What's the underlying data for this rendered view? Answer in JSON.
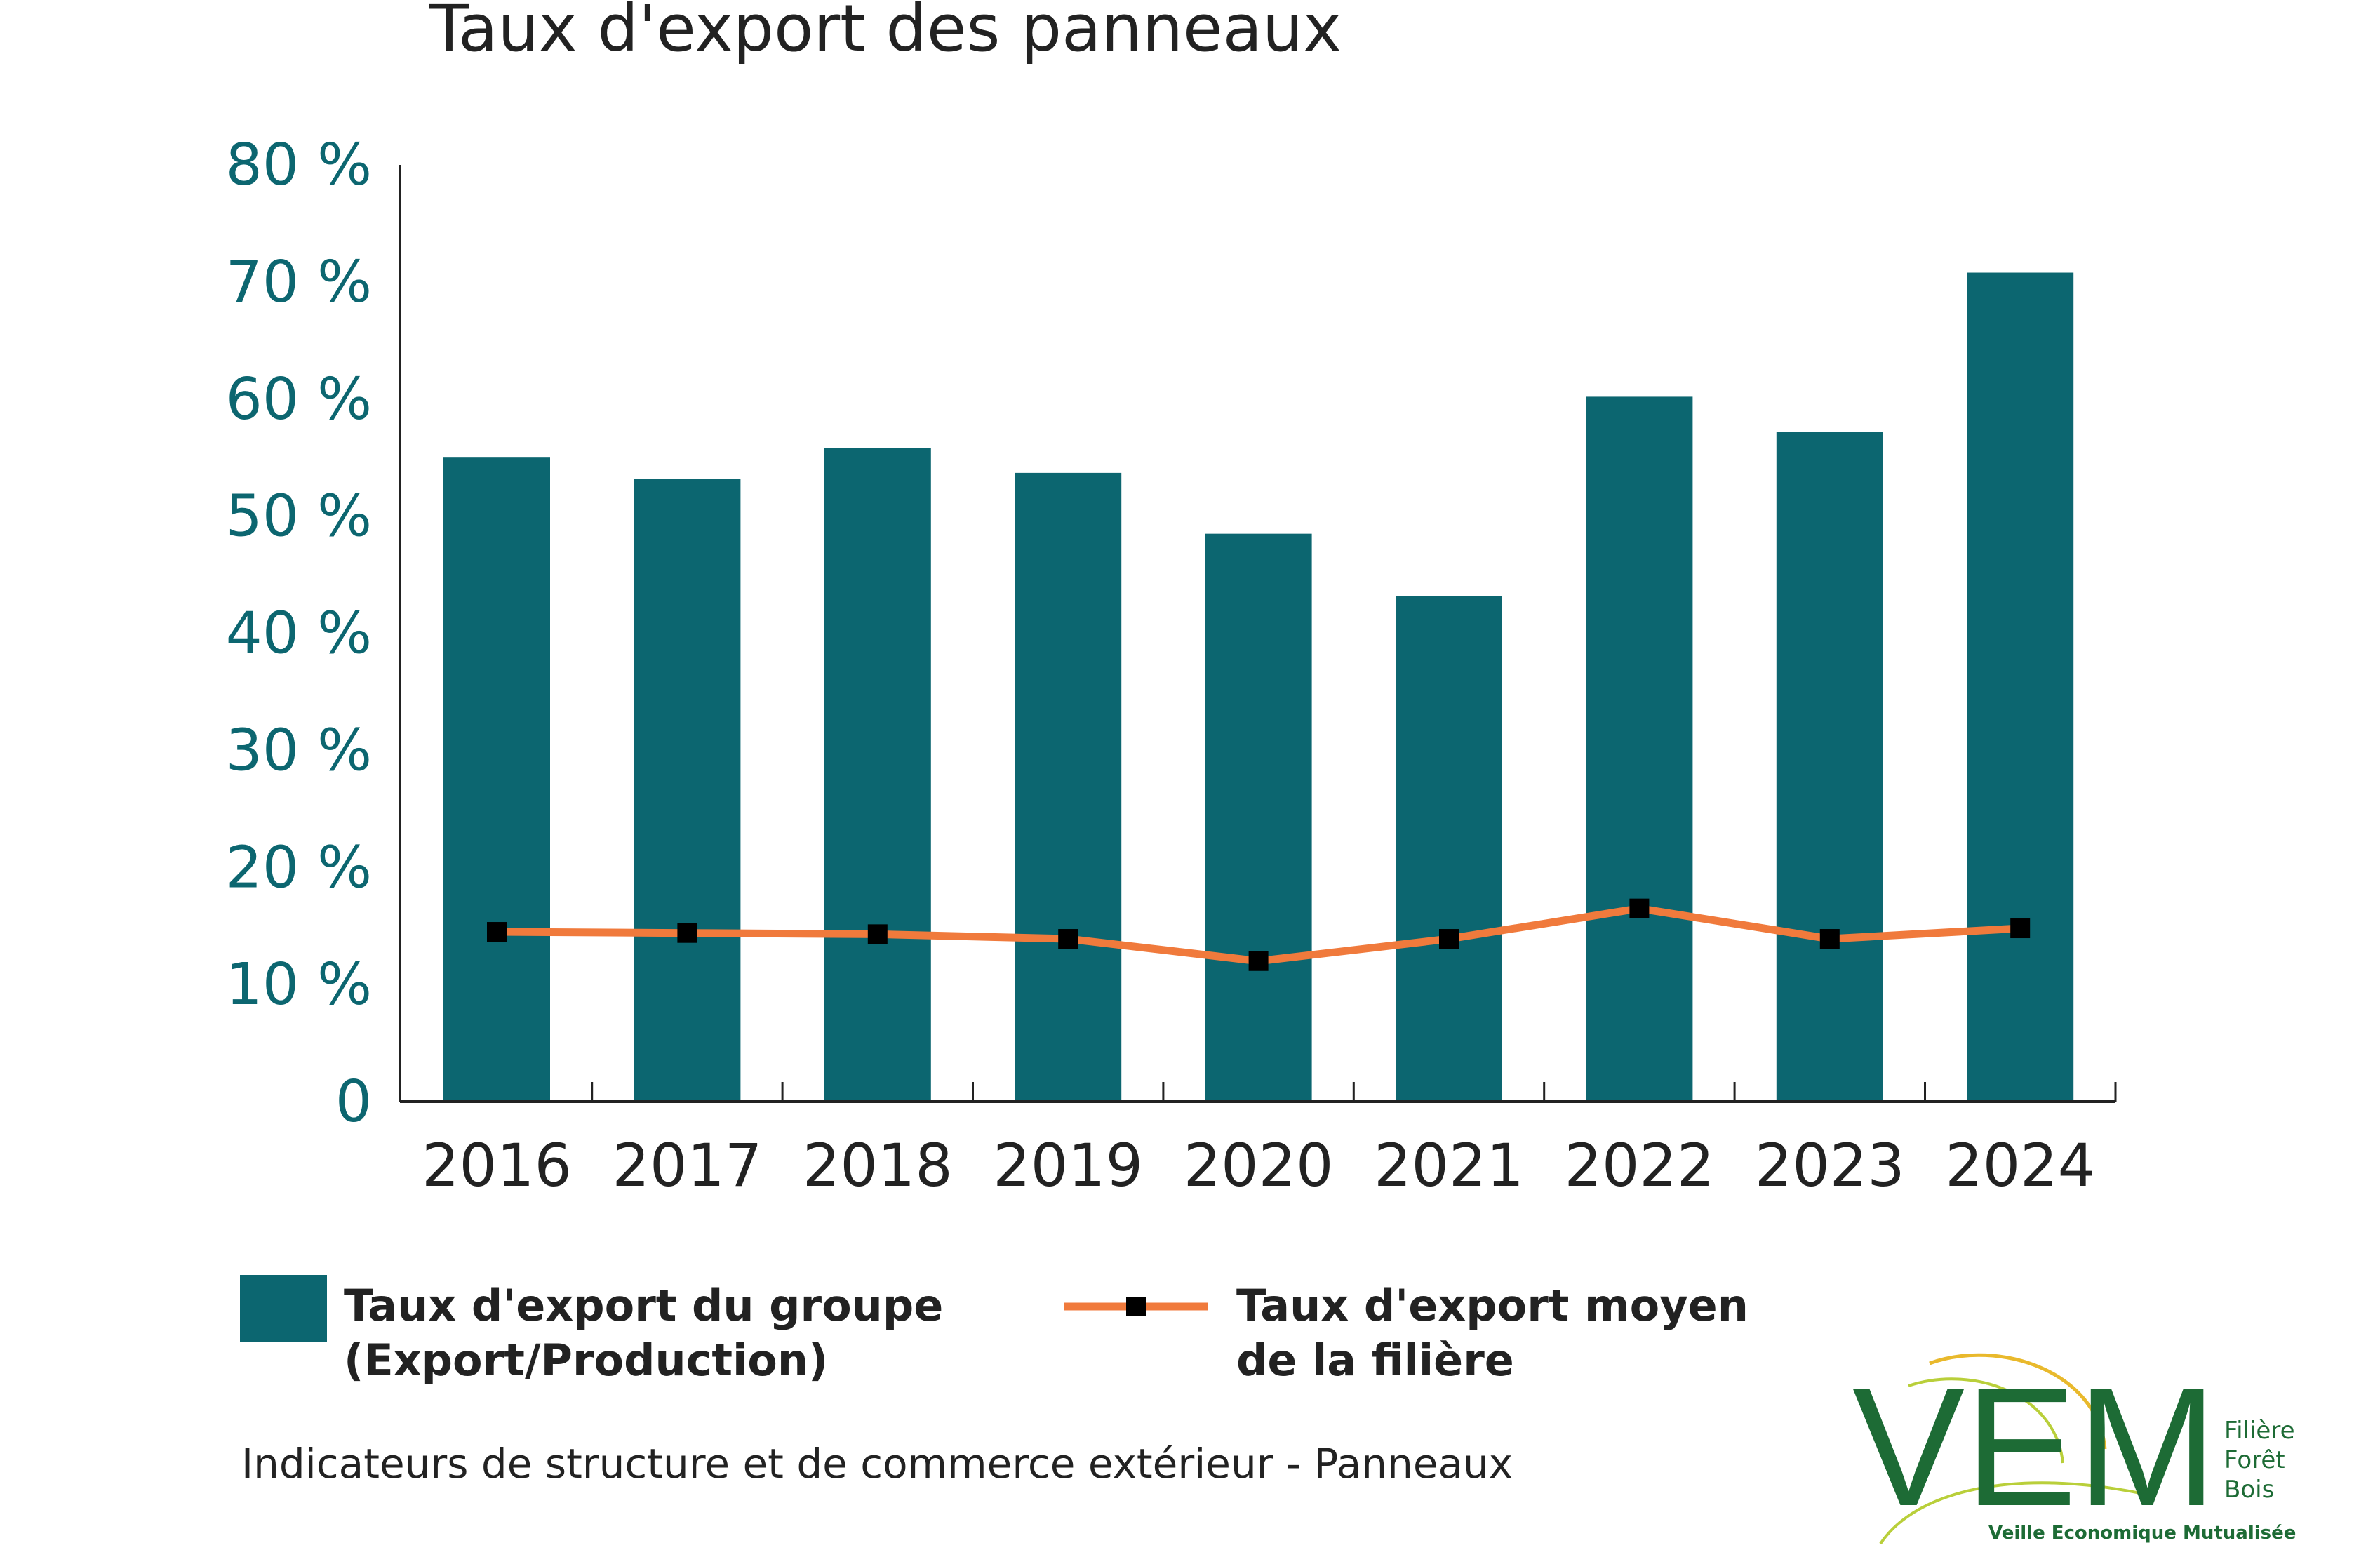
{
  "chart_data": {
    "type": "bar",
    "title": "Taux d'export des panneaux",
    "categories": [
      "2016",
      "2017",
      "2018",
      "2019",
      "2020",
      "2021",
      "2022",
      "2023",
      "2024"
    ],
    "series": [
      {
        "name": "Taux d'export du groupe\n(Export/Production)",
        "type": "bar",
        "color": "#0c6670",
        "values": [
          55,
          53.2,
          55.8,
          53.7,
          48.5,
          43.2,
          60.2,
          57.2,
          70.8
        ]
      },
      {
        "name": "Taux d'export moyen\nde la filière",
        "type": "line",
        "color": "#f07a3c",
        "marker_color": "#000000",
        "values": [
          14.5,
          14.4,
          14.3,
          13.9,
          12.0,
          13.9,
          16.5,
          13.9,
          14.8
        ]
      }
    ],
    "yticks": [
      "0",
      "10 %",
      "20 %",
      "30 %",
      "40 %",
      "50 %",
      "60 %",
      "70 %",
      "80 %"
    ],
    "ylim": [
      0,
      80
    ],
    "xlabel": "",
    "ylabel": "",
    "grid": false,
    "legend_position": "bottom"
  },
  "caption": "Indicateurs de structure et de commerce extérieur - Panneaux",
  "logo": {
    "letters": "VEM",
    "side_text": "Filière\nForêt\nBois",
    "bottom_text": "Veille Economique Mutualisée",
    "color": "#1d6b35"
  }
}
